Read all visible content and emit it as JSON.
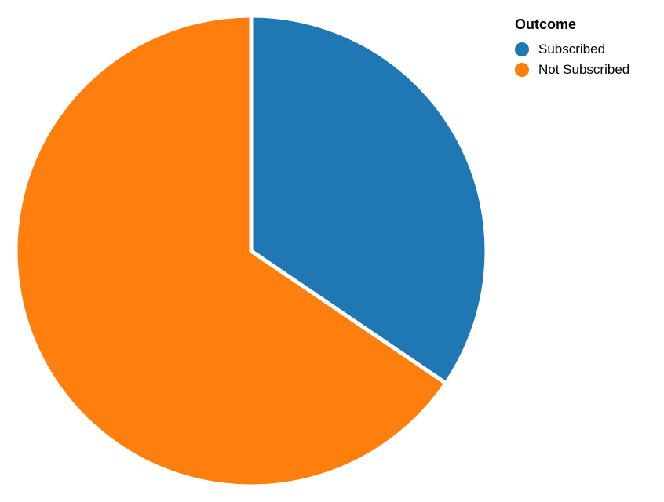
{
  "chart_data": {
    "type": "pie",
    "legend_title": "Outcome",
    "legend_position": "top-right",
    "slices": [
      {
        "label": "Subscribed",
        "value": 34.5,
        "color": "#1f77b4"
      },
      {
        "label": "Not Subscribed",
        "value": 65.5,
        "color": "#ff7f0e"
      }
    ]
  }
}
